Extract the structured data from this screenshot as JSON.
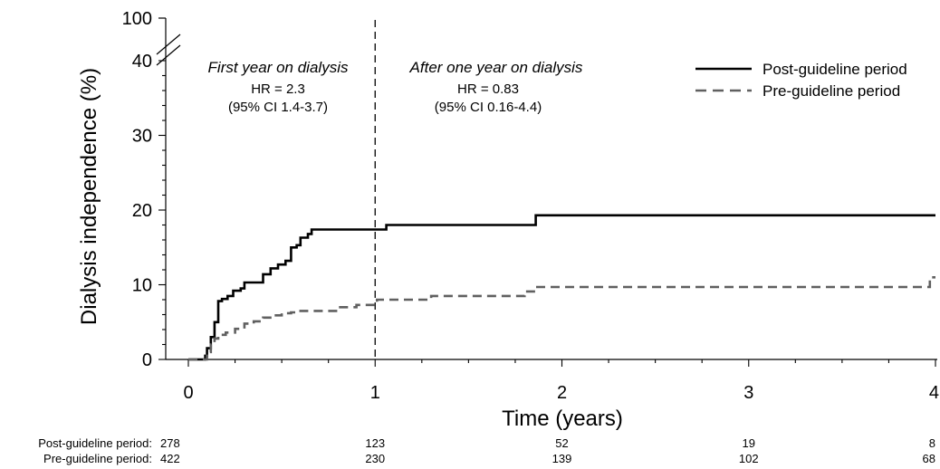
{
  "chart_data": {
    "type": "line",
    "ylabel": "Dialysis independence (%)",
    "xlabel": "Time (years)",
    "x_ticks": [
      0,
      1,
      2,
      3,
      4
    ],
    "x_tick_labels": [
      "0",
      "1",
      "2",
      "3",
      "4"
    ],
    "y_ticks": [
      0,
      10,
      20,
      30,
      40
    ],
    "y_tick_labels": [
      "0",
      "10",
      "20",
      "30",
      "40"
    ],
    "y_top_label": "100",
    "ylim": [
      0,
      40
    ],
    "y_break": true,
    "xlim": [
      -0.13,
      4
    ],
    "reference_line_x": 1,
    "legend_position": "top-right",
    "series": [
      {
        "name": "Post-guideline period",
        "style": "solid",
        "color": "#000000",
        "points": [
          [
            0,
            0
          ],
          [
            0.07,
            0
          ],
          [
            0.09,
            0.5
          ],
          [
            0.1,
            1.5
          ],
          [
            0.12,
            3
          ],
          [
            0.14,
            5
          ],
          [
            0.16,
            7.8
          ],
          [
            0.18,
            8.1
          ],
          [
            0.21,
            8.5
          ],
          [
            0.24,
            9.2
          ],
          [
            0.28,
            9.5
          ],
          [
            0.3,
            10.3
          ],
          [
            0.37,
            10.3
          ],
          [
            0.4,
            11.4
          ],
          [
            0.44,
            12.2
          ],
          [
            0.48,
            12.7
          ],
          [
            0.52,
            13.2
          ],
          [
            0.55,
            15
          ],
          [
            0.58,
            15.3
          ],
          [
            0.6,
            16.3
          ],
          [
            0.64,
            16.8
          ],
          [
            0.66,
            17.4
          ],
          [
            1.0,
            17.4
          ],
          [
            1.06,
            18
          ],
          [
            1.85,
            18
          ],
          [
            1.86,
            19.3
          ],
          [
            4.0,
            19.3
          ]
        ]
      },
      {
        "name": "Pre-guideline period",
        "style": "dashed",
        "color": "#606060",
        "points": [
          [
            0,
            0
          ],
          [
            0.07,
            0
          ],
          [
            0.1,
            1
          ],
          [
            0.12,
            2
          ],
          [
            0.14,
            2.8
          ],
          [
            0.16,
            3.3
          ],
          [
            0.2,
            3.6
          ],
          [
            0.25,
            4.1
          ],
          [
            0.3,
            4.8
          ],
          [
            0.35,
            5.1
          ],
          [
            0.4,
            5.6
          ],
          [
            0.45,
            5.9
          ],
          [
            0.5,
            6.2
          ],
          [
            0.55,
            6.3
          ],
          [
            0.6,
            6.5
          ],
          [
            0.8,
            7
          ],
          [
            0.9,
            7.3
          ],
          [
            1.0,
            7.3
          ],
          [
            1.01,
            8
          ],
          [
            1.3,
            8.5
          ],
          [
            1.8,
            9.1
          ],
          [
            1.86,
            9.7
          ],
          [
            3.95,
            9.7
          ],
          [
            3.97,
            11
          ],
          [
            4.0,
            11
          ]
        ]
      }
    ],
    "annotations": [
      {
        "title": "First year on dialysis",
        "hr": "HR = 2.3",
        "ci": "(95% CI 1.4-3.7)"
      },
      {
        "title": "After one year on dialysis",
        "hr": "HR = 0.83",
        "ci": "(95% CI 0.16-4.4)"
      }
    ],
    "number_at_risk": [
      {
        "label": "Post-guideline period:",
        "values": [
          "278",
          "123",
          "52",
          "19",
          "8"
        ]
      },
      {
        "label": "Pre-guideline period:",
        "values": [
          "422",
          "230",
          "139",
          "102",
          "68"
        ]
      }
    ]
  }
}
